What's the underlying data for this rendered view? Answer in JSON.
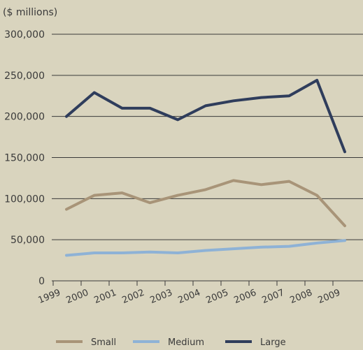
{
  "chart_data": {
    "type": "line",
    "unit_label": "($ millions)",
    "x": [
      "1999",
      "2000",
      "2001",
      "2002",
      "2003",
      "2004",
      "2005",
      "2006",
      "2007",
      "2008",
      "2009"
    ],
    "ylim": [
      0,
      300000
    ],
    "yticks": [
      0,
      50000,
      100000,
      150000,
      200000,
      250000,
      300000
    ],
    "ytick_labels": [
      "0",
      "50,000",
      "100,000",
      "150,000",
      "200,000",
      "250,000",
      "300,000"
    ],
    "grid": true,
    "legend_position": "bottom",
    "series": [
      {
        "name": "Small",
        "color": "#a89478",
        "values": [
          87000,
          104000,
          107000,
          95000,
          104000,
          111000,
          122000,
          117000,
          121000,
          104000,
          67000
        ]
      },
      {
        "name": "Medium",
        "color": "#8eb2d6",
        "values": [
          31000,
          34000,
          34000,
          35000,
          34000,
          37000,
          39000,
          41000,
          42000,
          46000,
          49000
        ]
      },
      {
        "name": "Large",
        "color": "#2f3d5c",
        "values": [
          200000,
          229000,
          210000,
          210000,
          196000,
          213000,
          219000,
          223000,
          225000,
          244000,
          157000
        ]
      }
    ]
  }
}
